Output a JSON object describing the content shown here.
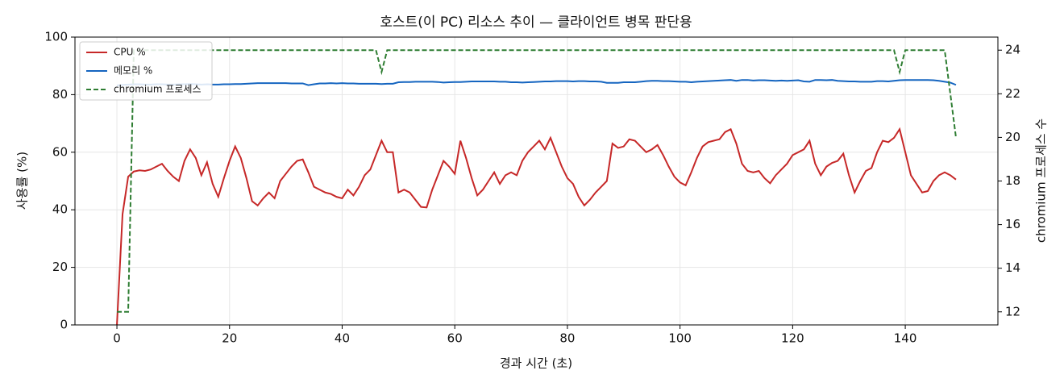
{
  "chart_data": {
    "type": "line",
    "title": "호스트(이 PC) 리소스 추이 — 클라이언트 병목 판단용",
    "x_label": "경과 시간 (초)",
    "y_label": "사용률 (%)",
    "y2_label": "chromium 프로세스 수",
    "x": [
      0,
      1,
      2,
      3,
      4,
      5,
      6,
      7,
      8,
      9,
      10,
      11,
      12,
      13,
      14,
      15,
      16,
      17,
      18,
      19,
      20,
      21,
      22,
      23,
      24,
      25,
      26,
      27,
      28,
      29,
      30,
      31,
      32,
      33,
      34,
      35,
      36,
      37,
      38,
      39,
      40,
      41,
      42,
      43,
      44,
      45,
      46,
      47,
      48,
      49,
      50,
      51,
      52,
      53,
      54,
      55,
      56,
      57,
      58,
      59,
      60,
      61,
      62,
      63,
      64,
      65,
      66,
      67,
      68,
      69,
      70,
      71,
      72,
      73,
      74,
      75,
      76,
      77,
      78,
      79,
      80,
      81,
      82,
      83,
      84,
      85,
      86,
      87,
      88,
      89,
      90,
      91,
      92,
      93,
      94,
      95,
      96,
      97,
      98,
      99,
      100,
      101,
      102,
      103,
      104,
      105,
      106,
      107,
      108,
      109,
      110,
      111,
      112,
      113,
      114,
      115,
      116,
      117,
      118,
      119,
      120,
      121,
      122,
      123,
      124,
      125,
      126,
      127,
      128,
      129,
      130,
      131,
      132,
      133,
      134,
      135,
      136,
      137,
      138,
      139,
      140,
      141,
      142,
      143,
      144,
      145,
      146,
      147,
      148,
      149
    ],
    "series": [
      {
        "name": "CPU %",
        "color": "#c62828",
        "dash": false,
        "values": [
          0,
          38.5,
          51.5,
          53.3,
          53.7,
          53.5,
          54,
          55,
          56,
          53.5,
          51.5,
          50,
          57,
          61,
          58,
          52,
          56.5,
          49,
          44.5,
          51,
          57,
          62,
          58,
          51,
          43,
          41.5,
          44,
          46,
          44,
          50,
          52.5,
          55,
          57,
          57.5,
          53,
          48,
          47,
          46,
          45.5,
          44.5,
          44,
          47,
          45,
          48,
          52,
          54,
          59,
          64,
          60,
          60,
          46,
          47,
          46,
          43.5,
          41,
          40.8,
          47,
          52,
          57,
          55,
          52.5,
          64,
          58,
          51,
          45,
          47,
          50,
          53,
          49,
          52,
          53,
          52,
          57,
          60,
          62,
          64,
          61,
          65,
          60,
          55,
          51,
          49,
          44.5,
          41.5,
          43.5,
          46,
          48,
          50,
          63,
          61.5,
          62,
          64.5,
          64,
          62,
          60,
          61,
          62.5,
          59,
          55,
          51.5,
          49.5,
          48.5,
          53,
          58,
          62,
          63.5,
          64,
          64.5,
          67,
          68,
          63,
          56,
          53.5,
          53,
          53.5,
          51,
          49.2,
          52,
          54,
          56,
          59,
          60,
          61,
          64,
          56,
          52,
          55,
          56.3,
          57,
          59.5,
          52,
          46,
          50,
          53.5,
          54.5,
          60,
          64,
          63.5,
          65,
          68,
          60,
          52,
          49,
          46,
          46.5,
          50,
          52,
          53,
          52,
          50.5
        ]
      },
      {
        "name": "메모리 %",
        "color": "#1565c0",
        "dash": false,
        "values": [
          83.2,
          83.4,
          83.5,
          83.6,
          83.6,
          83.5,
          83.5,
          83.6,
          83.6,
          83.5,
          83.5,
          83.6,
          83.6,
          83.7,
          83.6,
          83.5,
          83.6,
          83.5,
          83.5,
          83.6,
          83.6,
          83.7,
          83.7,
          83.8,
          83.9,
          84,
          84,
          84,
          84,
          84,
          84,
          83.9,
          83.9,
          83.9,
          83.3,
          83.6,
          83.9,
          83.9,
          84,
          83.9,
          84,
          83.9,
          83.9,
          83.8,
          83.8,
          83.8,
          83.8,
          83.7,
          83.8,
          83.8,
          84.3,
          84.4,
          84.4,
          84.5,
          84.5,
          84.5,
          84.5,
          84.4,
          84.2,
          84.3,
          84.4,
          84.4,
          84.5,
          84.6,
          84.6,
          84.6,
          84.6,
          84.6,
          84.5,
          84.5,
          84.3,
          84.3,
          84.2,
          84.3,
          84.4,
          84.5,
          84.6,
          84.6,
          84.7,
          84.7,
          84.7,
          84.6,
          84.7,
          84.7,
          84.6,
          84.6,
          84.5,
          84.1,
          84.1,
          84.1,
          84.3,
          84.3,
          84.3,
          84.5,
          84.7,
          84.8,
          84.8,
          84.7,
          84.7,
          84.6,
          84.5,
          84.5,
          84.3,
          84.5,
          84.6,
          84.7,
          84.8,
          84.9,
          85,
          85.1,
          84.8,
          85.1,
          85.1,
          84.9,
          85,
          85,
          84.9,
          84.8,
          84.9,
          84.8,
          84.9,
          85,
          84.6,
          84.5,
          85.1,
          85.1,
          85,
          85.1,
          84.8,
          84.7,
          84.6,
          84.6,
          84.5,
          84.5,
          84.5,
          84.7,
          84.7,
          84.6,
          84.8,
          85,
          85.1,
          85.1,
          85.1,
          85.1,
          85.1,
          85,
          84.8,
          84.5,
          84.2,
          83.4
        ]
      },
      {
        "name": "chromium 프로세스",
        "color": "#2e7d32",
        "dash": true,
        "axis": "y2",
        "values": [
          12,
          12,
          12,
          24,
          24,
          24,
          24,
          24,
          24,
          24,
          24,
          24,
          24,
          24,
          24,
          24,
          24,
          24,
          24,
          24,
          24,
          24,
          24,
          24,
          24,
          24,
          24,
          24,
          24,
          24,
          24,
          24,
          24,
          24,
          24,
          24,
          24,
          24,
          24,
          24,
          24,
          24,
          24,
          24,
          24,
          24,
          24,
          23,
          24,
          24,
          24,
          24,
          24,
          24,
          24,
          24,
          24,
          24,
          24,
          24,
          24,
          24,
          24,
          24,
          24,
          24,
          24,
          24,
          24,
          24,
          24,
          24,
          24,
          24,
          24,
          24,
          24,
          24,
          24,
          24,
          24,
          24,
          24,
          24,
          24,
          24,
          24,
          24,
          24,
          24,
          24,
          24,
          24,
          24,
          24,
          24,
          24,
          24,
          24,
          24,
          24,
          24,
          24,
          24,
          24,
          24,
          24,
          24,
          24,
          24,
          24,
          24,
          24,
          24,
          24,
          24,
          24,
          24,
          24,
          24,
          24,
          24,
          24,
          24,
          24,
          24,
          24,
          24,
          24,
          24,
          24,
          24,
          24,
          24,
          24,
          24,
          24,
          24,
          24,
          23,
          24,
          24,
          24,
          24,
          24,
          24,
          24,
          24,
          22,
          20
        ]
      }
    ],
    "xlim": [
      -7.45,
      156.45
    ],
    "xticks": [
      0,
      20,
      40,
      60,
      80,
      100,
      120,
      140
    ],
    "ylim": [
      0,
      100
    ],
    "yticks": [
      0,
      20,
      40,
      60,
      80,
      100
    ],
    "y2lim": [
      11.4,
      24.6
    ],
    "y2ticks": [
      12,
      14,
      16,
      18,
      20,
      22,
      24
    ],
    "grid": true,
    "legend": "upper-left"
  }
}
